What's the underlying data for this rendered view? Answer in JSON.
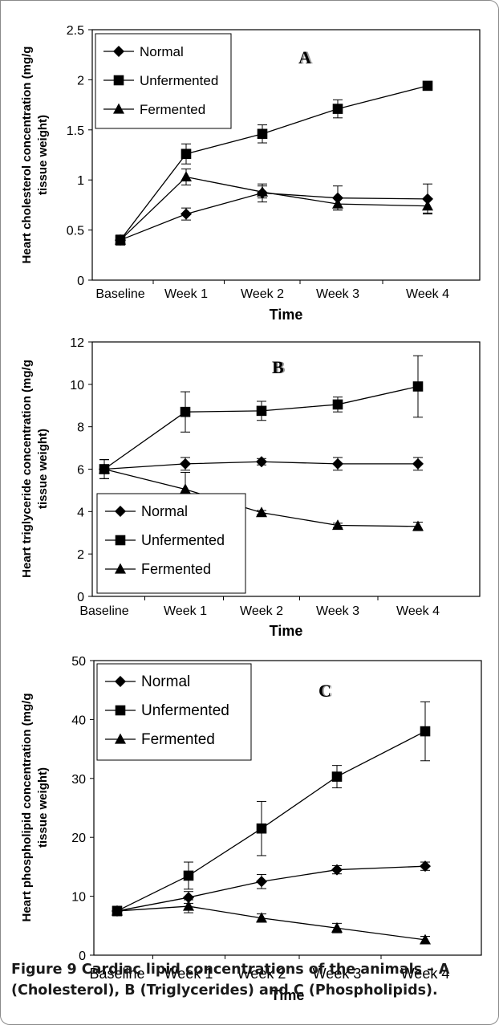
{
  "chart_data": [
    {
      "type": "line",
      "panel_label": "A",
      "ylabel": "Heart cholesterol concentration (mg/g tissue weight)",
      "ylabel_lines": [
        "Heart cholesterol concentration (mg/g",
        "tissue weight)"
      ],
      "xlabel": "Time",
      "categories": [
        "Baseline",
        "Week 1",
        "Week 2",
        "Week 3",
        "Week 4"
      ],
      "ylim": [
        0,
        2.5
      ],
      "yticks": [
        0,
        0.5,
        1,
        1.5,
        2,
        2.5
      ],
      "ytick_labels": [
        "0",
        "0.5",
        "1",
        "1.5",
        "2",
        "2.5"
      ],
      "legend_position": "top-left",
      "grid": false,
      "series": [
        {
          "name": "Normal",
          "marker": "diamond",
          "values": [
            0.4,
            0.66,
            0.87,
            0.82,
            0.81
          ],
          "errors": [
            0.05,
            0.06,
            0.09,
            0.12,
            0.15
          ]
        },
        {
          "name": "Unfermented",
          "marker": "square",
          "values": [
            0.4,
            1.26,
            1.46,
            1.71,
            1.94
          ],
          "errors": [
            0.04,
            0.1,
            0.09,
            0.09,
            0.02
          ]
        },
        {
          "name": "Fermented",
          "marker": "triangle",
          "values": [
            0.4,
            1.03,
            0.88,
            0.76,
            0.74
          ],
          "errors": [
            0.04,
            0.08,
            0.06,
            0.06,
            0.07
          ]
        }
      ]
    },
    {
      "type": "line",
      "panel_label": "B",
      "ylabel": "Heart triglyceride concentration (mg/g tissue weight)",
      "ylabel_lines": [
        "Heart triglyceride concentration (mg/g",
        "tissue weight)"
      ],
      "xlabel": "Time",
      "categories": [
        "Baseline",
        "Week 1",
        "Week 2",
        "Week 3",
        "Week 4"
      ],
      "ylim": [
        0,
        12
      ],
      "yticks": [
        0,
        2,
        4,
        6,
        8,
        10,
        12
      ],
      "ytick_labels": [
        "0",
        "2",
        "4",
        "6",
        "8",
        "10",
        "12"
      ],
      "legend_position": "bottom-left",
      "grid": false,
      "series": [
        {
          "name": "Normal",
          "marker": "diamond",
          "values": [
            6.0,
            6.25,
            6.35,
            6.25,
            6.25
          ],
          "errors": [
            0.45,
            0.3,
            0.15,
            0.3,
            0.3
          ]
        },
        {
          "name": "Unfermented",
          "marker": "square",
          "values": [
            6.0,
            8.7,
            8.75,
            9.05,
            9.9
          ],
          "errors": [
            0.45,
            0.95,
            0.45,
            0.35,
            1.45
          ]
        },
        {
          "name": "Fermented",
          "marker": "triangle",
          "values": [
            6.0,
            5.05,
            3.95,
            3.35,
            3.3
          ],
          "errors": [
            0.45,
            0.8,
            0.1,
            0.1,
            0.2
          ]
        }
      ]
    },
    {
      "type": "line",
      "panel_label": "C",
      "ylabel": "Heart phospholipid concentration (mg/g tissue weight)",
      "ylabel_lines": [
        "Heart phospholipid concentration (mg/g",
        "tissue weight)"
      ],
      "xlabel": "Time",
      "categories": [
        "Baseline",
        "Week 1",
        "Week 2",
        "Week 3",
        "Week 4"
      ],
      "ylim": [
        0,
        50
      ],
      "yticks": [
        0,
        10,
        20,
        30,
        40,
        50
      ],
      "ytick_labels": [
        "0",
        "10",
        "20",
        "30",
        "40",
        "50"
      ],
      "legend_position": "top-left",
      "grid": false,
      "series": [
        {
          "name": "Normal",
          "marker": "diamond",
          "values": [
            7.5,
            9.8,
            12.5,
            14.5,
            15.1
          ],
          "errors": [
            0.8,
            1.0,
            1.2,
            0.7,
            0.7
          ]
        },
        {
          "name": "Unfermented",
          "marker": "square",
          "values": [
            7.5,
            13.5,
            21.5,
            30.3,
            38.0
          ],
          "errors": [
            0.8,
            2.3,
            4.6,
            1.9,
            5.0
          ]
        },
        {
          "name": "Fermented",
          "marker": "triangle",
          "values": [
            7.5,
            8.3,
            6.3,
            4.6,
            2.6
          ],
          "errors": [
            0.8,
            1.1,
            0.7,
            0.8,
            0.6
          ]
        }
      ]
    }
  ],
  "caption": {
    "lead": "Figure 9",
    "text": " Cardiac lipid concentrations of the animals – A (Cholesterol), B (Triglycerides) and C (Phospholipids)."
  }
}
